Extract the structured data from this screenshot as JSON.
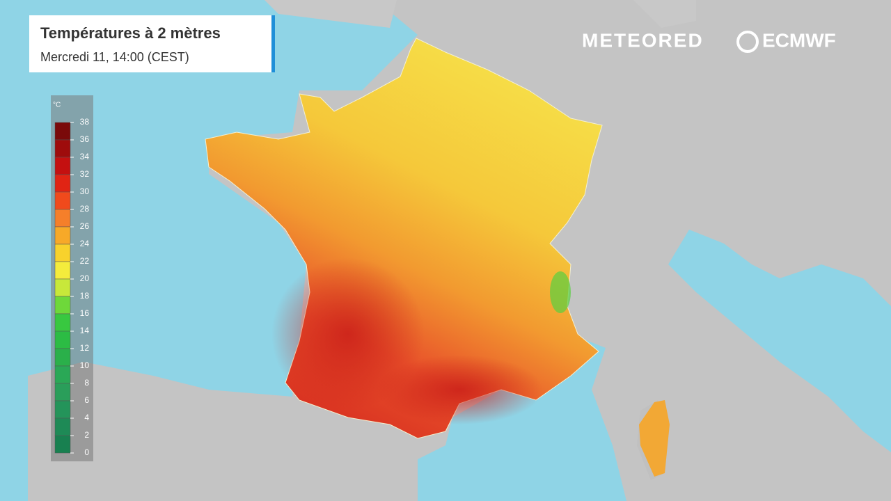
{
  "header": {
    "title": "Températures à 2 mètres",
    "subtitle": "Mercredi 11, 14:00 (CEST)"
  },
  "logos": [
    "METEORED",
    "ECMWF"
  ],
  "legend": {
    "unit": "°C",
    "ticks": [
      38,
      36,
      34,
      32,
      30,
      28,
      26,
      24,
      22,
      20,
      18,
      16,
      14,
      12,
      10,
      8,
      6,
      4,
      2,
      0
    ],
    "colors": [
      "#7a0a0a",
      "#9e0c0c",
      "#c41010",
      "#e02414",
      "#f04a1c",
      "#f57f2a",
      "#f7a928",
      "#f8d22c",
      "#f4ec3c",
      "#c8e83a",
      "#6ed83a",
      "#38c840",
      "#2cbc44",
      "#2ab04a",
      "#2aa856",
      "#2a9e5a",
      "#24945a",
      "#1e8a56",
      "#188050"
    ]
  }
}
